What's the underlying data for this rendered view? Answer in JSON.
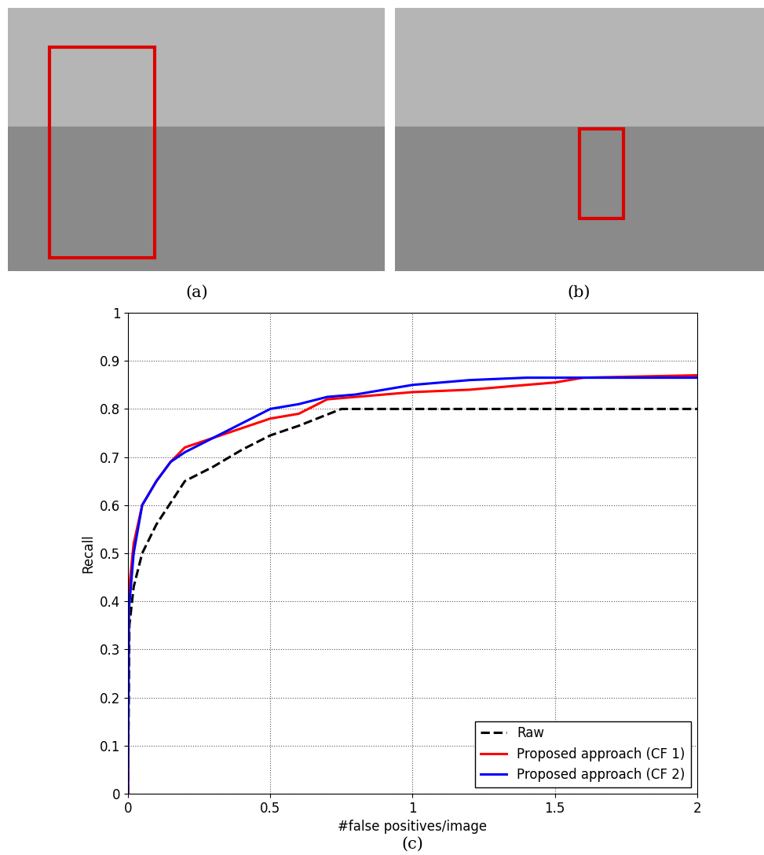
{
  "panel_labels": [
    "(a)",
    "(b)",
    "(c)"
  ],
  "chart_data": {
    "type": "line",
    "x_label": "#false positives/image",
    "y_label": "Recall",
    "xlim": [
      0,
      2
    ],
    "ylim": [
      0,
      1
    ],
    "xticks": [
      0,
      0.5,
      1,
      1.5,
      2
    ],
    "yticks": [
      0,
      0.1,
      0.2,
      0.3,
      0.4,
      0.5,
      0.6,
      0.7,
      0.8,
      0.9,
      1
    ],
    "grid": true,
    "legend": "lower right",
    "series": [
      {
        "name": "Raw",
        "color": "#000000",
        "line_style": "dashed",
        "x": [
          0,
          0.005,
          0.02,
          0.05,
          0.1,
          0.2,
          0.3,
          0.4,
          0.5,
          0.6,
          0.75,
          1.0,
          1.5,
          2.0
        ],
        "values": [
          0,
          0.35,
          0.43,
          0.5,
          0.56,
          0.65,
          0.68,
          0.715,
          0.745,
          0.765,
          0.8,
          0.8,
          0.8,
          0.8
        ]
      },
      {
        "name": "Proposed approach (CF 1)",
        "color": "#ff0000",
        "line_style": "solid",
        "x": [
          0,
          0.003,
          0.02,
          0.05,
          0.1,
          0.15,
          0.2,
          0.3,
          0.4,
          0.5,
          0.6,
          0.7,
          0.8,
          1.0,
          1.2,
          1.5,
          1.6,
          2.0
        ],
        "values": [
          0,
          0.42,
          0.52,
          0.6,
          0.65,
          0.69,
          0.72,
          0.74,
          0.76,
          0.78,
          0.79,
          0.82,
          0.825,
          0.835,
          0.84,
          0.855,
          0.865,
          0.87
        ]
      },
      {
        "name": "Proposed approach (CF 2)",
        "color": "#0000ff",
        "line_style": "solid",
        "x": [
          0,
          0.003,
          0.02,
          0.05,
          0.1,
          0.15,
          0.2,
          0.3,
          0.4,
          0.5,
          0.6,
          0.7,
          0.8,
          1.0,
          1.2,
          1.4,
          1.5,
          2.0
        ],
        "values": [
          0,
          0.38,
          0.5,
          0.6,
          0.65,
          0.69,
          0.71,
          0.74,
          0.77,
          0.8,
          0.81,
          0.825,
          0.83,
          0.85,
          0.86,
          0.865,
          0.865,
          0.865
        ]
      }
    ]
  }
}
